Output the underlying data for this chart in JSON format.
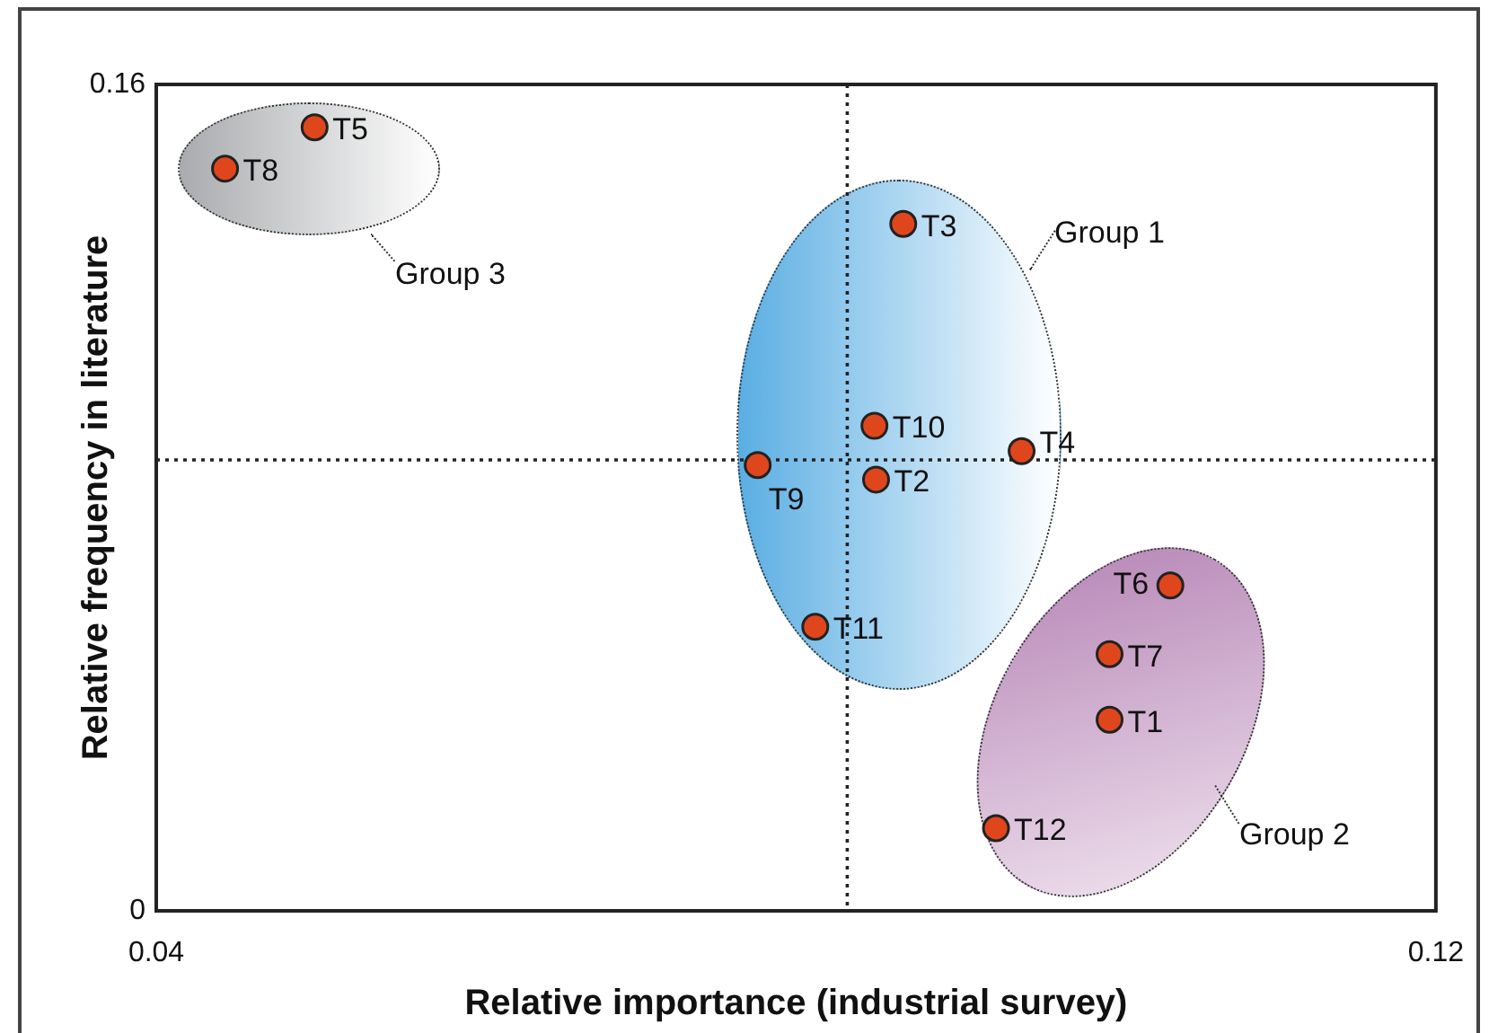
{
  "chart_data": {
    "type": "scatter",
    "xlabel": "Relative importance (industrial survey)",
    "ylabel": "Relative frequency in literature",
    "xlim": [
      0.04,
      0.12
    ],
    "ylim": [
      0,
      0.16
    ],
    "xticks": [
      0.04,
      0.12
    ],
    "yticks": [
      0,
      0.16
    ],
    "legend": false,
    "marker": "circle",
    "series": [
      {
        "name": "T1",
        "color": "#e0461c",
        "x": [
          0.0996
        ],
        "values": [
          0.037
        ]
      },
      {
        "name": "T2",
        "color": "#e0461c",
        "x": [
          0.085
        ],
        "values": [
          0.0835
        ]
      },
      {
        "name": "T3",
        "color": "#e0461c",
        "x": [
          0.0867
        ],
        "values": [
          0.133
        ]
      },
      {
        "name": "T4",
        "color": "#e0461c",
        "x": [
          0.0941
        ],
        "values": [
          0.089
        ]
      },
      {
        "name": "T5",
        "color": "#e0461c",
        "x": [
          0.0499
        ],
        "values": [
          0.1517
        ]
      },
      {
        "name": "T6",
        "color": "#e0461c",
        "x": [
          0.1034
        ],
        "values": [
          0.063
        ]
      },
      {
        "name": "T7",
        "color": "#e0461c",
        "x": [
          0.0996
        ],
        "values": [
          0.0497
        ]
      },
      {
        "name": "T8",
        "color": "#e0461c",
        "x": [
          0.0443
        ],
        "values": [
          0.1437
        ]
      },
      {
        "name": "T9",
        "color": "#e0461c",
        "x": [
          0.0776
        ],
        "values": [
          0.0863
        ]
      },
      {
        "name": "T10",
        "color": "#e0461c",
        "x": [
          0.0849
        ],
        "values": [
          0.0939
        ]
      },
      {
        "name": "T11",
        "color": "#e0461c",
        "x": [
          0.0812
        ],
        "values": [
          0.055
        ]
      },
      {
        "name": "T12",
        "color": "#e0461c",
        "x": [
          0.0925
        ],
        "values": [
          0.016
        ]
      }
    ],
    "ref_lines": [
      {
        "axis": "x",
        "value": 0.0832,
        "line_style": "dotted"
      },
      {
        "axis": "y",
        "value": 0.0873,
        "line_style": "dotted"
      }
    ],
    "annotations": [
      "Group 1",
      "Group 2",
      "Group 3"
    ]
  }
}
